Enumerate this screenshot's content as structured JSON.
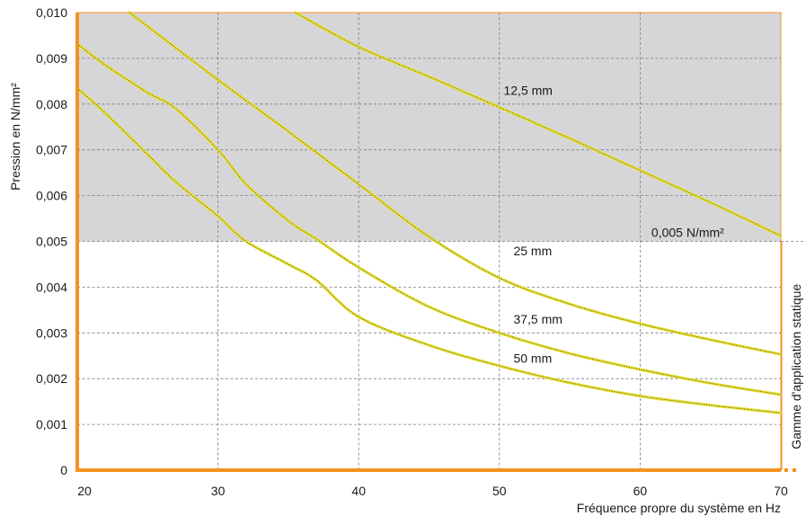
{
  "chart_data": {
    "type": "line",
    "title": "",
    "xlabel": "Fréquence propre du système en Hz",
    "ylabel": "Pression en N/mm²",
    "xlim": [
      20,
      70
    ],
    "ylim": [
      0,
      0.01
    ],
    "x_ticks": [
      "20",
      "30",
      "40",
      "50",
      "60",
      "70"
    ],
    "y_ticks": [
      "0",
      "0,001",
      "0,002",
      "0,003",
      "0,004",
      "0,005",
      "0,006",
      "0,007",
      "0,008",
      "0,009",
      "0,010"
    ],
    "grid": true,
    "colors": {
      "axis": "#f5921e",
      "shaded_region": "#d6d6d8",
      "curve": "#e9e23c",
      "curve_dots": "#6b6a10"
    },
    "threshold": {
      "value": 0.005,
      "label": "0,005 N/mm²"
    },
    "static_range_label": "Gamme d'application statique",
    "series": [
      {
        "name": "12,5 mm",
        "x": [
          35.5,
          40,
          45,
          50,
          55,
          60,
          65,
          70
        ],
        "y": [
          0.01,
          0.00925,
          0.0086,
          0.00793,
          0.00725,
          0.00655,
          0.00585,
          0.00512
        ]
      },
      {
        "name": "25 mm",
        "x": [
          23.7,
          25,
          30,
          35,
          40,
          45,
          50,
          55,
          60,
          65,
          70
        ],
        "y": [
          0.01,
          0.0097,
          0.00853,
          0.0074,
          0.00625,
          0.0051,
          0.0042,
          0.00363,
          0.0032,
          0.00285,
          0.00253
        ]
      },
      {
        "name": "37,5 mm",
        "x": [
          20,
          22,
          25,
          27,
          30,
          32,
          35,
          37,
          40,
          45,
          50,
          55,
          60,
          65,
          70
        ],
        "y": [
          0.00932,
          0.00885,
          0.00825,
          0.0079,
          0.007,
          0.00625,
          0.00545,
          0.00505,
          0.00443,
          0.00357,
          0.003,
          0.00255,
          0.0022,
          0.0019,
          0.00165
        ]
      },
      {
        "name": "50 mm",
        "x": [
          20,
          22,
          25,
          27,
          30,
          32,
          35,
          37,
          40,
          45,
          50,
          55,
          60,
          65,
          70
        ],
        "y": [
          0.00835,
          0.0078,
          0.0069,
          0.0063,
          0.00555,
          0.005,
          0.0045,
          0.00415,
          0.00335,
          0.00273,
          0.00228,
          0.00191,
          0.00162,
          0.00142,
          0.00125
        ]
      }
    ]
  }
}
